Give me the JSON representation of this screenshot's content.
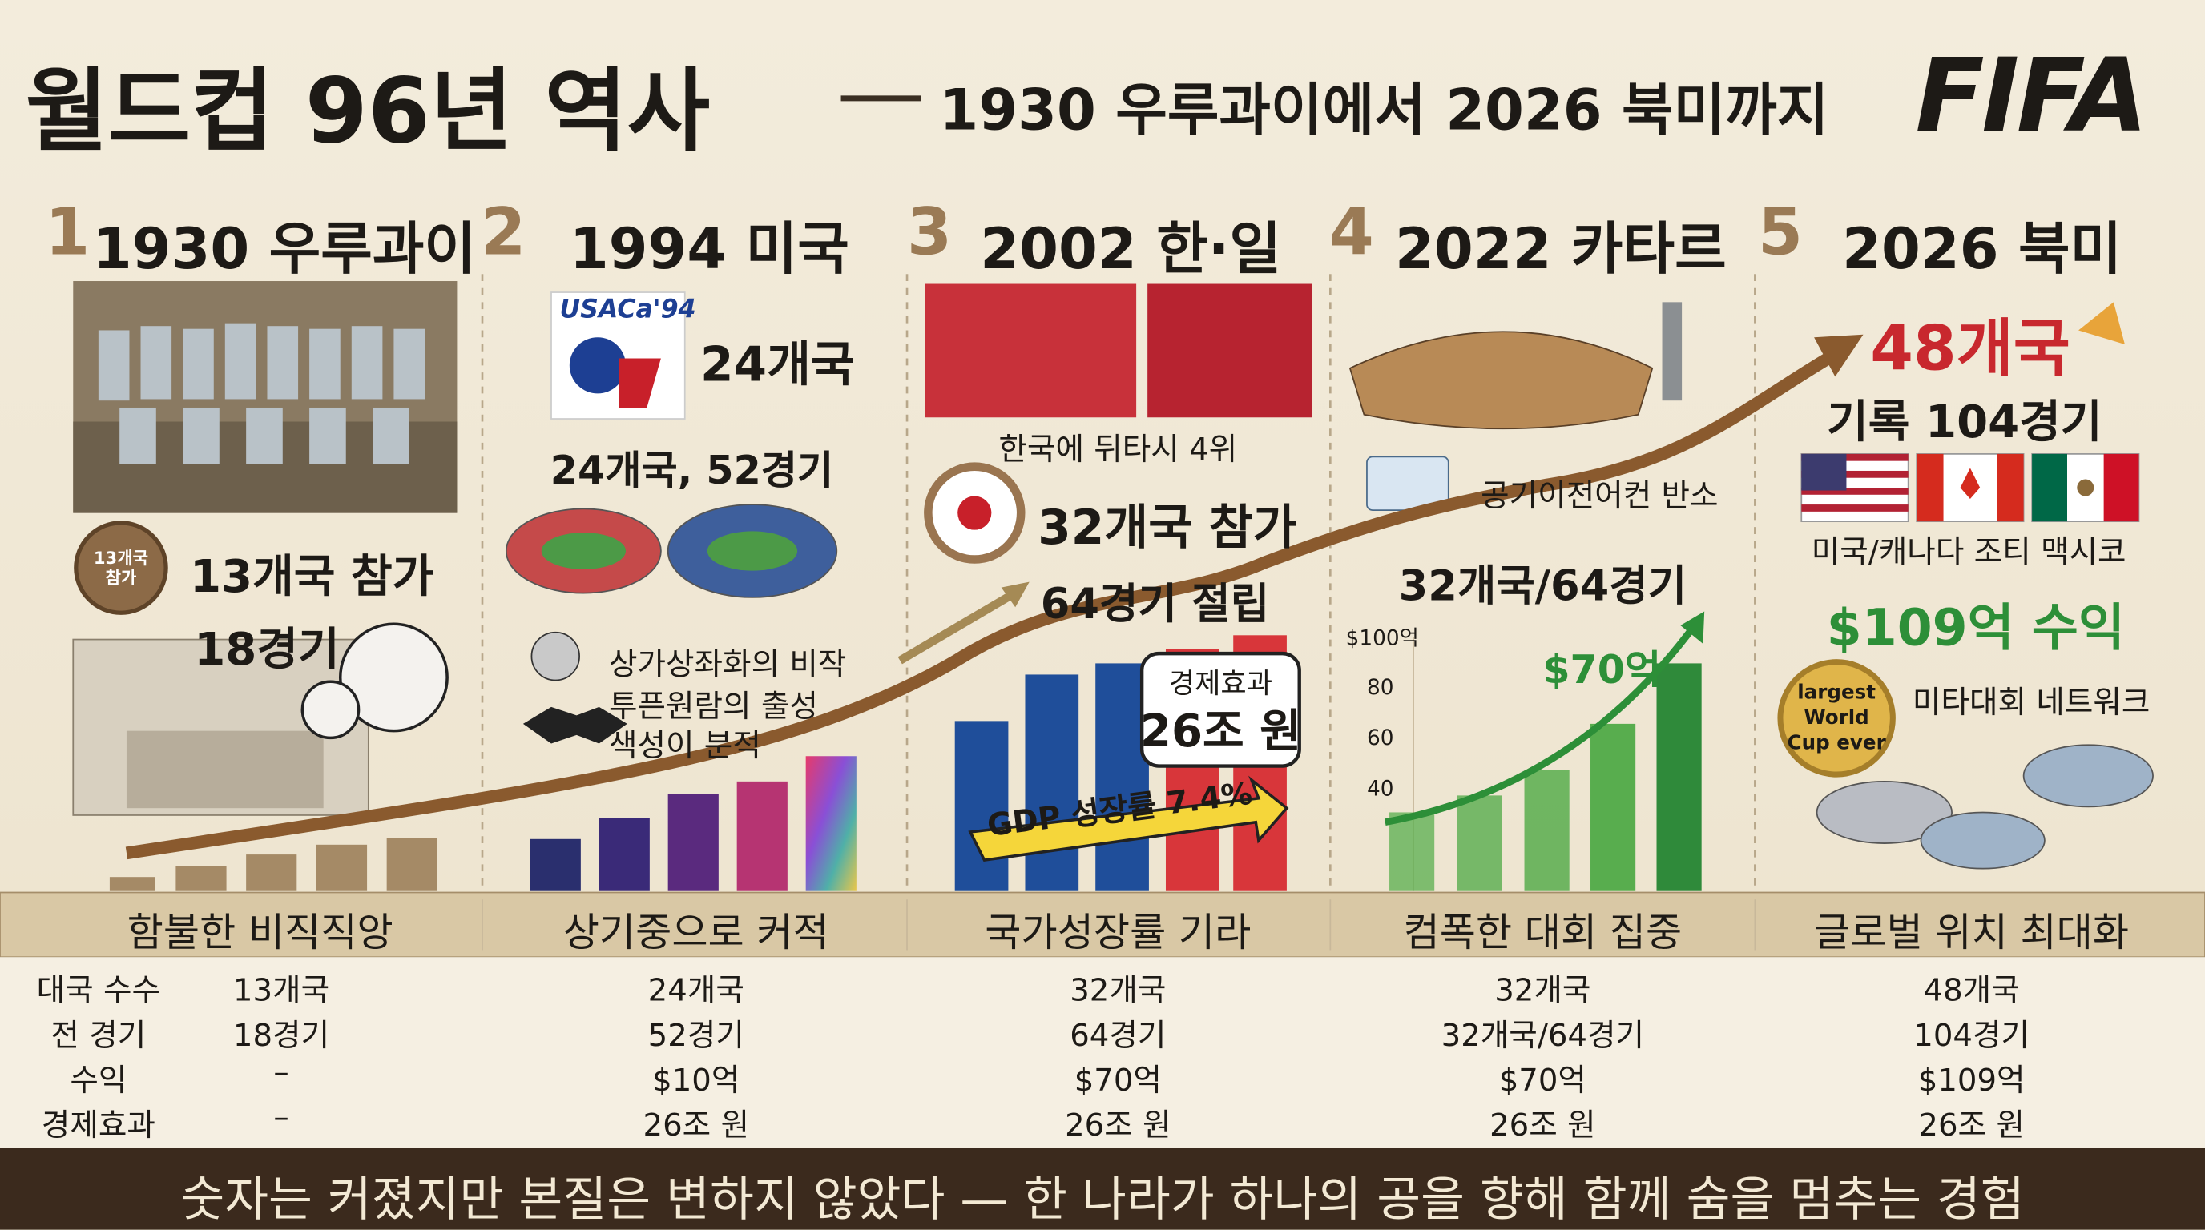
{
  "header": {
    "title": "월드컵 96년 역사",
    "subtitle": "1930 우루과이에서 2026 북미까지",
    "logo": "FIFA"
  },
  "columns": [
    {
      "number": "1",
      "title": "1930 우루과이",
      "badge": "13개국 참가",
      "teams": "13개국 참가",
      "matches": "18경기"
    },
    {
      "number": "2",
      "title": "1994 미국",
      "logo": "USACa'94",
      "teams": "24개국",
      "summary": "24개국, 52경기",
      "note1": "상가상좌화의 비작",
      "note2": "투픈원람의 출성\n색성이 분적"
    },
    {
      "number": "3",
      "title": "2002 한·일",
      "result": "한국에 뒤타시 4위",
      "teams": "32개국 참가",
      "matches": "64경기 절립",
      "callout_label": "경제효과",
      "callout_value": "26조 원",
      "gdp": "GDP 성장률 7.4%"
    },
    {
      "number": "4",
      "title": "2022 카타르",
      "note": "공기이전어컨 반소",
      "summary": "32개국/64경기",
      "chart_ticks": [
        "$100억",
        "80",
        "60",
        "40"
      ],
      "revenue": "$70억"
    },
    {
      "number": "5",
      "title": "2026 북미",
      "teams": "48개국",
      "matches": "기록 104경기",
      "hosts": "미국/캐나다 조티 맥시코",
      "revenue": "$109억 수익",
      "seal": "largest World Cup ever",
      "note": "미타대회 네트워크"
    }
  ],
  "band": [
    "함불한 비직직앙",
    "상기중으로 커적",
    "국가성장률 기라",
    "컴폭한 대회 집중",
    "글로벌 위치 최대화"
  ],
  "table": {
    "rows": [
      [
        "대국 수수",
        "13개국",
        "24개국",
        "32개국",
        "32개국",
        "48개국"
      ],
      [
        "전 경기",
        "18경기",
        "52경기",
        "64경기",
        "32개국/64경기",
        "104경기"
      ],
      [
        "수익",
        "–",
        "$10억",
        "$70억",
        "$70억",
        "$109억"
      ],
      [
        "경제효과",
        "–",
        "26조 원",
        "26조 원",
        "26조 원",
        "26조 원"
      ]
    ]
  },
  "footer": "숫자는 커졌지만 본질은 변하지 않았다 — 한 나라가 하나의 공을 향해 함께 숨을 멈추는 경험"
}
